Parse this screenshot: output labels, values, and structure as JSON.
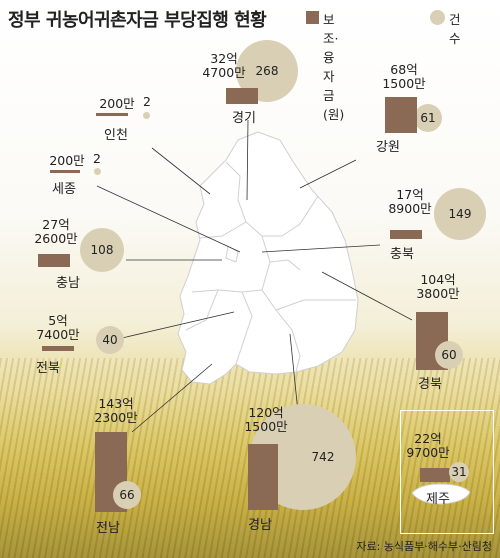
{
  "title": "정부 귀농어귀촌자금 부당집행 현황",
  "legend": {
    "bar_label": "보조·융자금(원)",
    "circle_label": "건수",
    "bar_color": "#8a6a55",
    "circle_color": "#d9cfb4"
  },
  "regions": [
    {
      "name": "경기",
      "amount_line1": "32억",
      "amount_line2": "4700만",
      "count": "268"
    },
    {
      "name": "강원",
      "amount_line1": "68억",
      "amount_line2": "1500만",
      "count": "61"
    },
    {
      "name": "인천",
      "amount_line1": "200만",
      "amount_line2": "",
      "count": "2"
    },
    {
      "name": "세종",
      "amount_line1": "200만",
      "amount_line2": "",
      "count": "2"
    },
    {
      "name": "충북",
      "amount_line1": "17억",
      "amount_line2": "8900만",
      "count": "149"
    },
    {
      "name": "충남",
      "amount_line1": "27억",
      "amount_line2": "2600만",
      "count": "108"
    },
    {
      "name": "경북",
      "amount_line1": "104억",
      "amount_line2": "3800만",
      "count": "60"
    },
    {
      "name": "전북",
      "amount_line1": "5억",
      "amount_line2": "7400만",
      "count": "40"
    },
    {
      "name": "전남",
      "amount_line1": "143억",
      "amount_line2": "2300만",
      "count": "66"
    },
    {
      "name": "경남",
      "amount_line1": "120억",
      "amount_line2": "1500만",
      "count": "742"
    },
    {
      "name": "제주",
      "amount_line1": "22억",
      "amount_line2": "9700만",
      "count": "31"
    }
  ],
  "source": "자료: 농식품부·해수부·산림청"
}
